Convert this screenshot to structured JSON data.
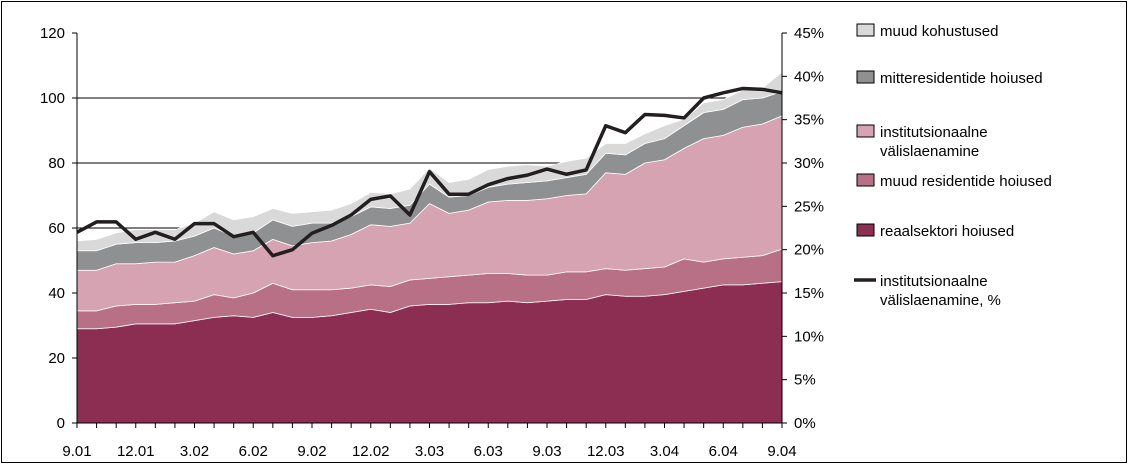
{
  "chart_data": {
    "type": "area",
    "x": [
      "9.01",
      "10.01",
      "11.01",
      "12.01",
      "1.02",
      "2.02",
      "3.02",
      "4.02",
      "5.02",
      "6.02",
      "7.02",
      "8.02",
      "9.02",
      "10.02",
      "11.02",
      "12.02",
      "1.03",
      "2.03",
      "3.03",
      "4.03",
      "5.03",
      "6.03",
      "7.03",
      "8.03",
      "9.03",
      "10.03",
      "11.03",
      "12.03",
      "1.04",
      "2.04",
      "3.04",
      "4.04",
      "5.04",
      "6.04",
      "7.04",
      "8.04",
      "9.04"
    ],
    "x_tick_labels": [
      "9.01",
      "12.01",
      "3.02",
      "6.02",
      "9.02",
      "12.02",
      "3.03",
      "6.03",
      "9.03",
      "12.03",
      "3.04",
      "6.04",
      "9.04"
    ],
    "y_left_lim": [
      0,
      120
    ],
    "y_left_ticks": [
      "0",
      "20",
      "40",
      "60",
      "80",
      "100",
      "120"
    ],
    "y_right_lim": [
      0,
      45
    ],
    "y_right_ticks": [
      "0%",
      "5%",
      "10%",
      "15%",
      "20%",
      "25%",
      "30%",
      "35%",
      "40%",
      "45%"
    ],
    "grid": "horizontal",
    "legend_position": "right",
    "stacked_series": [
      {
        "name": "reaalsektori hoiused",
        "color": "#8b2e52",
        "values": [
          29,
          29,
          29.5,
          30.5,
          30.5,
          30.5,
          31.5,
          32.5,
          33,
          32.5,
          34,
          32.5,
          32.5,
          33,
          34,
          35,
          34,
          36,
          36.5,
          36.5,
          37,
          37,
          37.5,
          37,
          37.5,
          38,
          38,
          39.5,
          39,
          39,
          39.5,
          40.5,
          41.5,
          42.5,
          42.5,
          43,
          43.5
        ]
      },
      {
        "name": "muud residentide hoiused",
        "color": "#b87087",
        "values": [
          5.5,
          5.5,
          6.5,
          6,
          6,
          6.5,
          6,
          7,
          5.5,
          7.5,
          9,
          8.5,
          8.5,
          8,
          7.5,
          7.5,
          8,
          8,
          8,
          8.5,
          8.5,
          9,
          8.5,
          8.5,
          8,
          8.5,
          8.5,
          8,
          8,
          8.5,
          8.5,
          10,
          8,
          8,
          8.5,
          8.5,
          10
        ]
      },
      {
        "name": "institutsionaalne välislaenamine",
        "color": "#d6a3b3",
        "values": [
          12.5,
          12.5,
          13,
          12.5,
          13,
          12.5,
          14,
          14.5,
          13.5,
          13,
          13.5,
          13.5,
          14.5,
          15,
          16.5,
          18.5,
          18.5,
          17.5,
          23,
          19.5,
          20,
          22,
          22.5,
          23,
          23.5,
          23.5,
          24,
          29.5,
          29.5,
          32.5,
          33,
          34,
          38,
          38,
          40,
          40.5,
          41
        ]
      },
      {
        "name": "mitteresidentide hoiused",
        "color": "#8f9092",
        "values": [
          6,
          6,
          6,
          6.5,
          6,
          6.5,
          6,
          6,
          5.5,
          5.5,
          6,
          6,
          6,
          5.5,
          5.5,
          5.5,
          5.5,
          5.5,
          6,
          5,
          4.5,
          4.5,
          5,
          5.5,
          5.5,
          5.5,
          6,
          6,
          6,
          6,
          6.5,
          7,
          8,
          8,
          8.5,
          8,
          7.5
        ]
      },
      {
        "name": "muud kohustused",
        "color": "#d9d9d9",
        "values": [
          3,
          3.5,
          3.5,
          4,
          4,
          3.5,
          4,
          5,
          5,
          5,
          3.5,
          4,
          3.5,
          4,
          4,
          4.5,
          4.5,
          5,
          5,
          4.5,
          5,
          5.5,
          5.5,
          5.5,
          4.5,
          5,
          5,
          3,
          3.5,
          3,
          4,
          2,
          3,
          3,
          3,
          3,
          6
        ]
      }
    ],
    "line_series": {
      "name": "institutsionaalne välislaenamine, %",
      "axis": "right",
      "color": "#231f20",
      "values": [
        22,
        23.2,
        23.2,
        21.2,
        22,
        21.2,
        23,
        23,
        21.5,
        22,
        19.3,
        20,
        21.9,
        22.8,
        24,
        25.8,
        26.2,
        24,
        29,
        26.4,
        26.4,
        27.5,
        28.2,
        28.6,
        29.3,
        28.7,
        29.2,
        34.3,
        33.5,
        35.6,
        35.5,
        35.2,
        37.5,
        38.1,
        38.6,
        38.5,
        38.1
      ]
    },
    "legend": [
      {
        "label_lines": [
          "muud kohustused"
        ],
        "color": "#d9d9d9",
        "kind": "box"
      },
      {
        "label_lines": [
          "mitteresidentide hoiused"
        ],
        "color": "#8f9092",
        "kind": "box"
      },
      {
        "label_lines": [
          "institutsionaalne",
          "välislaenamine"
        ],
        "color": "#d6a3b3",
        "kind": "box"
      },
      {
        "label_lines": [
          "muud residentide hoiused"
        ],
        "color": "#b87087",
        "kind": "box"
      },
      {
        "label_lines": [
          "reaalsektori hoiused"
        ],
        "color": "#8b2e52",
        "kind": "box"
      },
      {
        "label_lines": [
          "institutsionaalne",
          "välislaenamine, %"
        ],
        "color": "#231f20",
        "kind": "line"
      }
    ]
  }
}
